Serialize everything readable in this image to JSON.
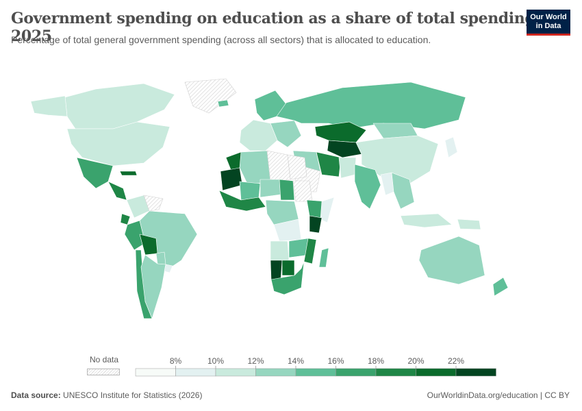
{
  "title": "Government spending on education as a share of total spending, 2025",
  "subtitle": "Percentage of total general government spending (across all sectors) that is allocated to education.",
  "logo": {
    "line1": "Our World",
    "line2": "in Data"
  },
  "footer": {
    "source_label": "Data source:",
    "source": "UNESCO Institute for Statistics (2026)",
    "link": "OurWorldinData.org/education | CC BY"
  },
  "legend": {
    "no_data_label": "No data",
    "tick_labels": [
      "8%",
      "10%",
      "12%",
      "14%",
      "16%",
      "18%",
      "20%",
      "22%"
    ],
    "bins": [
      {
        "from": 6,
        "to": 8,
        "color": "#f7fbf8"
      },
      {
        "from": 8,
        "to": 10,
        "color": "#e3f1f1"
      },
      {
        "from": 10,
        "to": 12,
        "color": "#c9eadd"
      },
      {
        "from": 12,
        "to": 14,
        "color": "#96d6bf"
      },
      {
        "from": 14,
        "to": 16,
        "color": "#5fbf98"
      },
      {
        "from": 16,
        "to": 18,
        "color": "#3aa36d"
      },
      {
        "from": 18,
        "to": 20,
        "color": "#1f8646"
      },
      {
        "from": 20,
        "to": 22,
        "color": "#0b6b2c"
      },
      {
        "from": 22,
        "to": 24,
        "color": "#034421"
      }
    ]
  },
  "map_regions": [
    {
      "name": "Canada",
      "color": "#c9eadd"
    },
    {
      "name": "United States",
      "color": "#c9eadd"
    },
    {
      "name": "Alaska",
      "color": "#c9eadd"
    },
    {
      "name": "Greenland",
      "color": "no-data"
    },
    {
      "name": "Iceland",
      "color": "#5fbf98"
    },
    {
      "name": "Mexico",
      "color": "#3aa36d"
    },
    {
      "name": "Central America",
      "color": "#1f8646"
    },
    {
      "name": "Caribbean",
      "color": "#0b6b2c"
    },
    {
      "name": "Colombia",
      "color": "#c9eadd"
    },
    {
      "name": "Venezuela",
      "color": "no-data"
    },
    {
      "name": "Peru",
      "color": "#3aa36d"
    },
    {
      "name": "Ecuador",
      "color": "#1f8646"
    },
    {
      "name": "Brazil",
      "color": "#96d6bf"
    },
    {
      "name": "Bolivia",
      "color": "#0b6b2c"
    },
    {
      "name": "Paraguay",
      "color": "#96d6bf"
    },
    {
      "name": "Chile",
      "color": "#3aa36d"
    },
    {
      "name": "Argentina",
      "color": "#96d6bf"
    },
    {
      "name": "Uruguay",
      "color": "#e3f1f1"
    },
    {
      "name": "Western Europe",
      "color": "#c9eadd"
    },
    {
      "name": "Scandinavia",
      "color": "#5fbf98"
    },
    {
      "name": "Eastern Europe",
      "color": "#96d6bf"
    },
    {
      "name": "Russia",
      "color": "#5fbf98"
    },
    {
      "name": "Kazakhstan",
      "color": "#0b6b2c"
    },
    {
      "name": "Central Asia",
      "color": "#034421"
    },
    {
      "name": "Mongolia",
      "color": "#96d6bf"
    },
    {
      "name": "China",
      "color": "#c9eadd"
    },
    {
      "name": "Iran",
      "color": "#1f8646"
    },
    {
      "name": "Middle East",
      "color": "#96d6bf"
    },
    {
      "name": "Saudi Arabia",
      "color": "no-data"
    },
    {
      "name": "Pakistan",
      "color": "#c9eadd"
    },
    {
      "name": "India",
      "color": "#5fbf98"
    },
    {
      "name": "Myanmar",
      "color": "#e3f1f1"
    },
    {
      "name": "Southeast Asia",
      "color": "#96d6bf"
    },
    {
      "name": "Japan",
      "color": "#e3f1f1"
    },
    {
      "name": "Indonesia",
      "color": "#c9eadd"
    },
    {
      "name": "Papua New Guinea",
      "color": "#c9eadd"
    },
    {
      "name": "Australia",
      "color": "#96d6bf"
    },
    {
      "name": "New Zealand",
      "color": "#5fbf98"
    },
    {
      "name": "Morocco",
      "color": "#0b6b2c"
    },
    {
      "name": "Algeria",
      "color": "#96d6bf"
    },
    {
      "name": "Libya",
      "color": "no-data"
    },
    {
      "name": "Egypt",
      "color": "no-data"
    },
    {
      "name": "Mauritania",
      "color": "#034421"
    },
    {
      "name": "Mali",
      "color": "#5fbf98"
    },
    {
      "name": "Niger",
      "color": "#96d6bf"
    },
    {
      "name": "Chad",
      "color": "#3aa36d"
    },
    {
      "name": "Sudan",
      "color": "no-data"
    },
    {
      "name": "West Africa",
      "color": "#1f8646"
    },
    {
      "name": "Central Africa",
      "color": "#96d6bf"
    },
    {
      "name": "Ethiopia",
      "color": "#3aa36d"
    },
    {
      "name": "Somalia",
      "color": "#e3f1f1"
    },
    {
      "name": "Kenya",
      "color": "#034421"
    },
    {
      "name": "DR Congo",
      "color": "#e3f1f1"
    },
    {
      "name": "Angola",
      "color": "#c9eadd"
    },
    {
      "name": "Zambia",
      "color": "#5fbf98"
    },
    {
      "name": "Mozambique",
      "color": "#1f8646"
    },
    {
      "name": "Namibia",
      "color": "#034421"
    },
    {
      "name": "Botswana",
      "color": "#0b6b2c"
    },
    {
      "name": "South Africa",
      "color": "#3aa36d"
    },
    {
      "name": "Madagascar",
      "color": "#5fbf98"
    }
  ]
}
